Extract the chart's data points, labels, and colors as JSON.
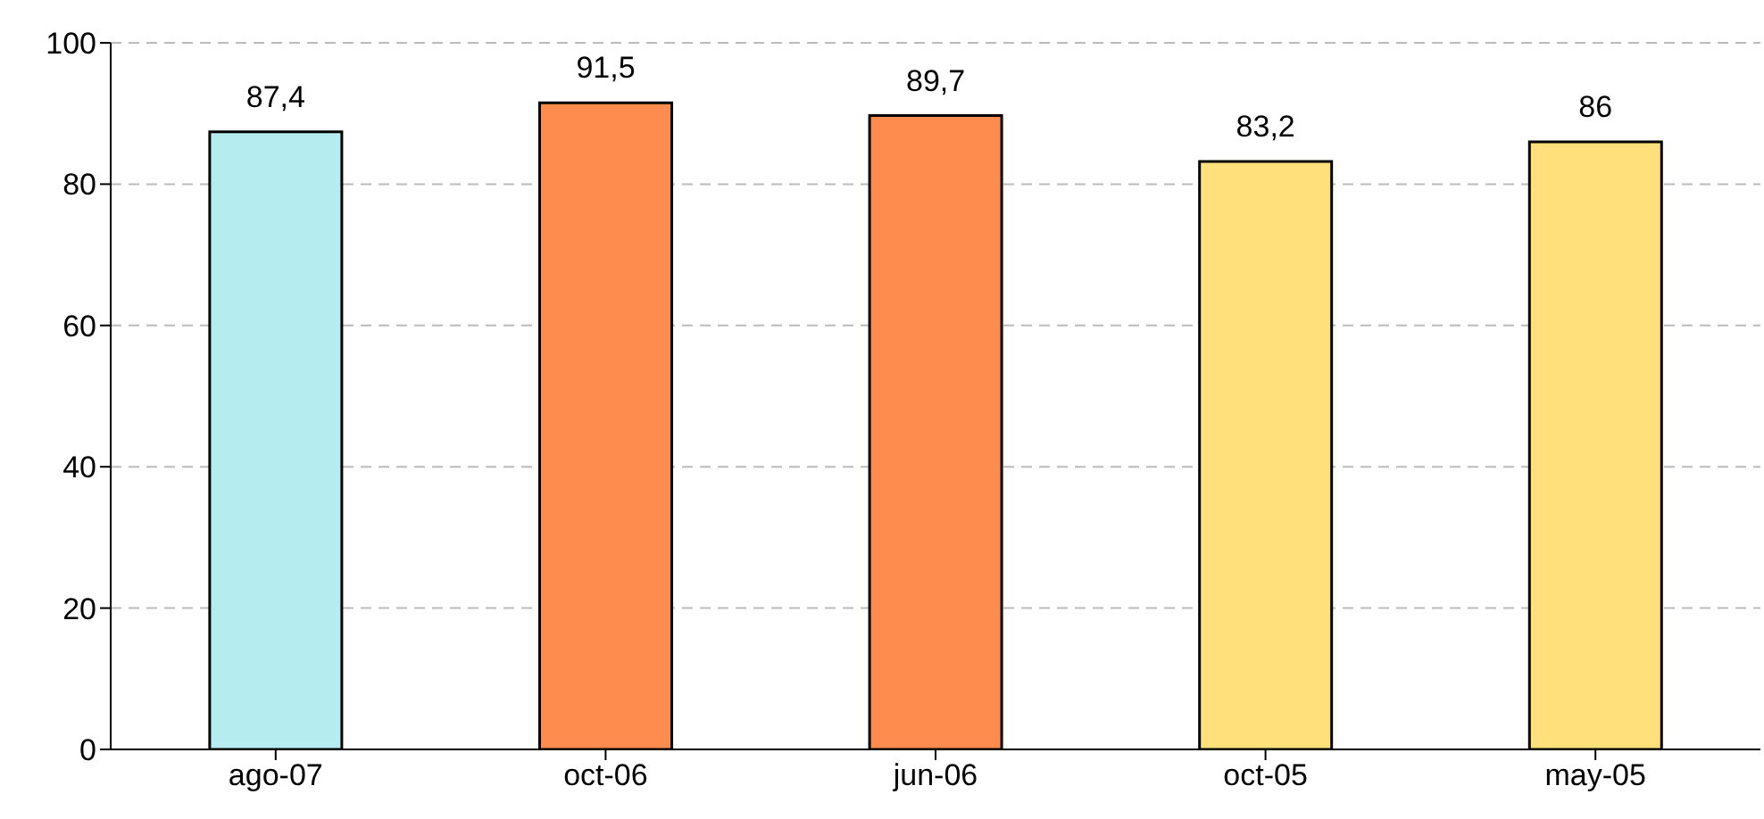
{
  "chart_data": {
    "type": "bar",
    "categories": [
      "ago-07",
      "oct-06",
      "jun-06",
      "oct-05",
      "may-05"
    ],
    "values": [
      87.4,
      91.5,
      89.7,
      83.2,
      86
    ],
    "colors": [
      "#b4ecef",
      "#ff8c4f",
      "#ff8c4f",
      "#ffe07a",
      "#ffe07a"
    ],
    "value_labels": [
      "87,4",
      "91,5",
      "89,7",
      "83,2",
      "86"
    ],
    "ylim": [
      0,
      100
    ],
    "yticks": [
      0,
      20,
      40,
      60,
      80,
      100
    ],
    "grid": "y"
  }
}
